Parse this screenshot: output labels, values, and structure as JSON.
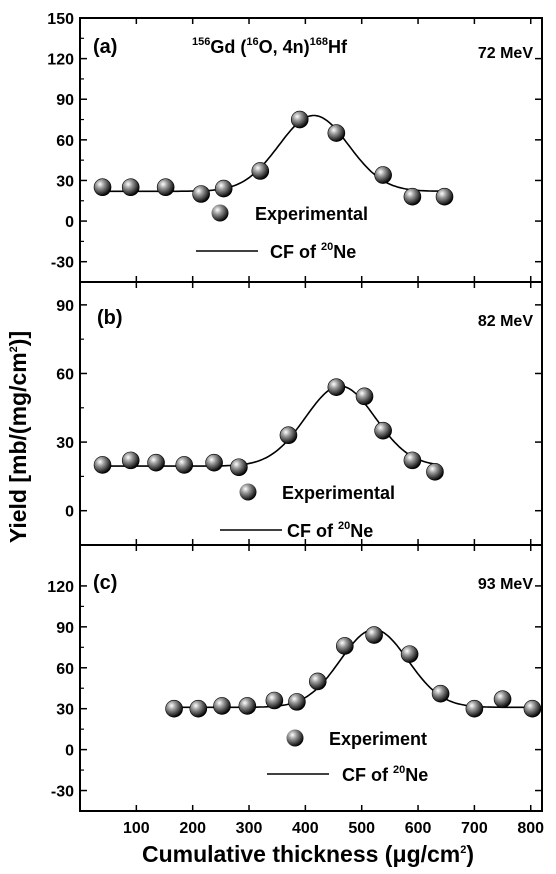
{
  "figure": {
    "ylabel_parts": [
      "Yield [mb/(mg/cm",
      "2",
      ")]"
    ],
    "xlabel_parts": [
      "Cumulative thickness (",
      "μ",
      "g/cm",
      "2",
      ")"
    ]
  },
  "chart_data": [
    {
      "type": "scatter",
      "panel_label": "(a)",
      "energy": "72 MeV",
      "reaction": {
        "parts": [
          "156",
          "Gd (",
          "16",
          "O, 4n)",
          "168",
          "Hf"
        ]
      },
      "legend": {
        "experimental": "Experimental",
        "fit_parts": [
          "CF of ",
          "20",
          "Ne"
        ]
      },
      "xlim": [
        0,
        820
      ],
      "ylim": [
        -45,
        150
      ],
      "yticks": [
        -30,
        0,
        30,
        60,
        90,
        120,
        150
      ],
      "series": [
        {
          "name": "Experimental",
          "x": [
            40,
            90,
            152,
            215,
            255,
            320,
            390,
            455,
            538,
            590,
            647
          ],
          "y": [
            25,
            25,
            25,
            20,
            24,
            37,
            75,
            65,
            34,
            18,
            18
          ]
        },
        {
          "name": "CF of 20Ne",
          "curve": {
            "type": "gaussian",
            "baseline": 22,
            "amplitude": 56,
            "center": 415,
            "sigma": 62,
            "x_range": [
              40,
              647
            ]
          }
        }
      ]
    },
    {
      "type": "scatter",
      "panel_label": "(b)",
      "energy": "82 MeV",
      "legend": {
        "experimental": "Experimental",
        "fit_parts": [
          "CF of ",
          "20",
          "Ne"
        ]
      },
      "xlim": [
        0,
        820
      ],
      "ylim": [
        -15,
        100
      ],
      "yticks": [
        0,
        30,
        60,
        90
      ],
      "series": [
        {
          "name": "Experimental",
          "x": [
            40,
            90,
            135,
            185,
            238,
            282,
            370,
            455,
            505,
            538,
            590,
            630
          ],
          "y": [
            20,
            22,
            21,
            20,
            21,
            19,
            33,
            54,
            50,
            35,
            22,
            17
          ]
        },
        {
          "name": "CF of 20Ne",
          "curve": {
            "type": "gaussian",
            "baseline": 19.5,
            "amplitude": 35,
            "center": 462,
            "sigma": 62,
            "x_range": [
              40,
              630
            ]
          }
        }
      ]
    },
    {
      "type": "scatter",
      "panel_label": "(c)",
      "energy": "93 MeV",
      "legend": {
        "experimental": "Experiment",
        "fit_parts": [
          "CF of ",
          "20",
          "Ne"
        ]
      },
      "xlim": [
        0,
        820
      ],
      "ylim": [
        -45,
        150
      ],
      "yticks": [
        -30,
        0,
        30,
        60,
        90,
        120
      ],
      "xticks": [
        100,
        200,
        300,
        400,
        500,
        600,
        700,
        800
      ],
      "series": [
        {
          "name": "Experiment",
          "x": [
            167,
            210,
            252,
            297,
            345,
            385,
            422,
            470,
            522,
            585,
            640,
            700,
            750,
            803
          ],
          "y": [
            30,
            30,
            32,
            32,
            36,
            35,
            50,
            76,
            84,
            70,
            41,
            30,
            37,
            30
          ]
        },
        {
          "name": "CF of 20Ne",
          "curve": {
            "type": "gaussian",
            "baseline": 31,
            "amplitude": 57,
            "center": 522,
            "sigma": 60,
            "x_range": [
              167,
              803
            ]
          }
        }
      ]
    }
  ]
}
